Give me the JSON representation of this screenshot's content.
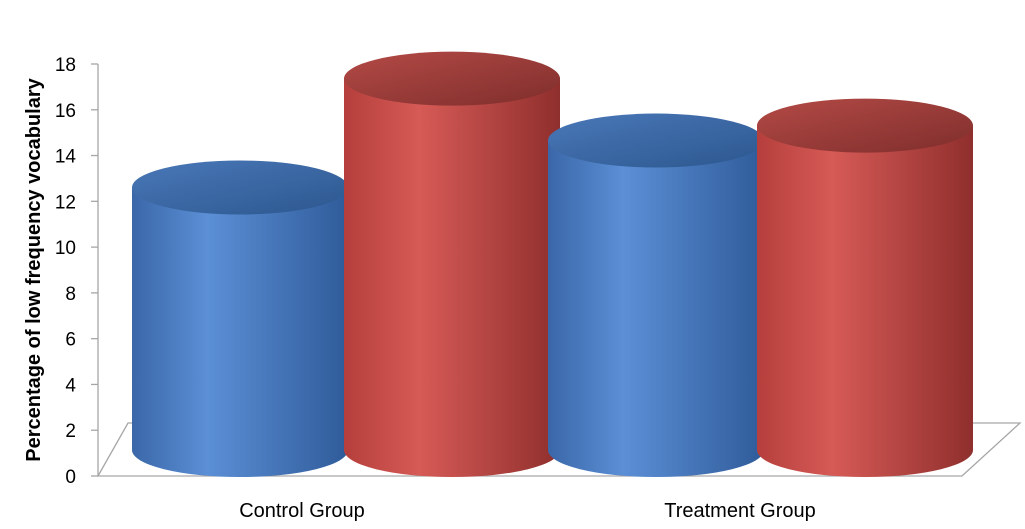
{
  "chart_data": {
    "type": "bar",
    "style": "3d-cylinder",
    "title": "",
    "xlabel": "",
    "ylabel": "Percentage of low frequency vocabulary",
    "ylim": [
      0,
      18
    ],
    "yticks": [
      "0",
      "2",
      "4",
      "6",
      "8",
      "10",
      "12",
      "14",
      "16",
      "18"
    ],
    "categories": [
      "Control Group",
      "Treatment Group"
    ],
    "series": [
      {
        "color": "#4F81BD",
        "values": [
          12.3,
          14.5
        ]
      },
      {
        "color": "#C0504D",
        "values": [
          17.4,
          15.2
        ]
      }
    ],
    "grid": false,
    "legend": "none"
  }
}
